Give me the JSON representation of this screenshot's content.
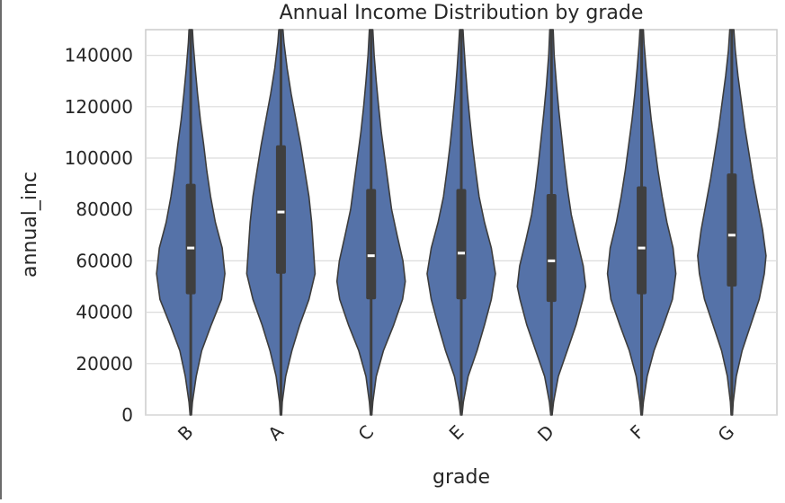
{
  "chart_data": {
    "type": "violin",
    "title": "Annual Income Distribution by grade",
    "xlabel": "grade",
    "ylabel": "annual_inc",
    "categories": [
      "B",
      "A",
      "C",
      "E",
      "D",
      "F",
      "G"
    ],
    "ylim": [
      0,
      150000
    ],
    "yticks": [
      0,
      20000,
      40000,
      60000,
      80000,
      100000,
      120000,
      140000
    ],
    "grid": true,
    "violin_color": "#5572a8",
    "box_color": "#3f3f3f",
    "median_color": "#ffffff",
    "series": [
      {
        "category": "B",
        "median": 65000,
        "q1": 47000,
        "q3": 90000,
        "density": [
          [
            0,
            0.02
          ],
          [
            5000,
            0.05
          ],
          [
            15000,
            0.16
          ],
          [
            25000,
            0.32
          ],
          [
            35000,
            0.6
          ],
          [
            45000,
            0.9
          ],
          [
            55000,
            1.0
          ],
          [
            65000,
            0.92
          ],
          [
            75000,
            0.72
          ],
          [
            85000,
            0.58
          ],
          [
            95000,
            0.47
          ],
          [
            105000,
            0.38
          ],
          [
            115000,
            0.28
          ],
          [
            125000,
            0.2
          ],
          [
            135000,
            0.13
          ],
          [
            145000,
            0.07
          ],
          [
            150000,
            0.05
          ]
        ]
      },
      {
        "category": "A",
        "median": 79000,
        "q1": 55000,
        "q3": 105000,
        "density": [
          [
            0,
            0.02
          ],
          [
            5000,
            0.04
          ],
          [
            15000,
            0.14
          ],
          [
            25000,
            0.32
          ],
          [
            35000,
            0.55
          ],
          [
            45000,
            0.82
          ],
          [
            55000,
            1.0
          ],
          [
            65000,
            0.95
          ],
          [
            75000,
            0.9
          ],
          [
            85000,
            0.82
          ],
          [
            95000,
            0.7
          ],
          [
            105000,
            0.58
          ],
          [
            115000,
            0.44
          ],
          [
            125000,
            0.3
          ],
          [
            135000,
            0.18
          ],
          [
            145000,
            0.09
          ],
          [
            150000,
            0.06
          ]
        ]
      },
      {
        "category": "C",
        "median": 62000,
        "q1": 45000,
        "q3": 88000,
        "density": [
          [
            0,
            0.02
          ],
          [
            5000,
            0.05
          ],
          [
            15000,
            0.15
          ],
          [
            25000,
            0.36
          ],
          [
            35000,
            0.66
          ],
          [
            45000,
            0.92
          ],
          [
            52000,
            1.0
          ],
          [
            60000,
            0.93
          ],
          [
            70000,
            0.76
          ],
          [
            80000,
            0.6
          ],
          [
            90000,
            0.5
          ],
          [
            100000,
            0.4
          ],
          [
            110000,
            0.3
          ],
          [
            120000,
            0.22
          ],
          [
            130000,
            0.15
          ],
          [
            140000,
            0.09
          ],
          [
            150000,
            0.05
          ]
        ]
      },
      {
        "category": "E",
        "median": 63000,
        "q1": 45000,
        "q3": 88000,
        "density": [
          [
            0,
            0.02
          ],
          [
            5000,
            0.06
          ],
          [
            15000,
            0.2
          ],
          [
            25000,
            0.46
          ],
          [
            35000,
            0.68
          ],
          [
            45000,
            0.88
          ],
          [
            55000,
            1.0
          ],
          [
            65000,
            0.88
          ],
          [
            75000,
            0.68
          ],
          [
            85000,
            0.52
          ],
          [
            95000,
            0.42
          ],
          [
            105000,
            0.33
          ],
          [
            115000,
            0.25
          ],
          [
            125000,
            0.18
          ],
          [
            135000,
            0.12
          ],
          [
            145000,
            0.07
          ],
          [
            150000,
            0.05
          ]
        ]
      },
      {
        "category": "D",
        "median": 60000,
        "q1": 44000,
        "q3": 86000,
        "density": [
          [
            0,
            0.02
          ],
          [
            5000,
            0.06
          ],
          [
            15000,
            0.2
          ],
          [
            25000,
            0.46
          ],
          [
            35000,
            0.72
          ],
          [
            45000,
            0.92
          ],
          [
            50000,
            1.0
          ],
          [
            58000,
            0.93
          ],
          [
            68000,
            0.75
          ],
          [
            78000,
            0.58
          ],
          [
            88000,
            0.47
          ],
          [
            98000,
            0.38
          ],
          [
            108000,
            0.3
          ],
          [
            118000,
            0.22
          ],
          [
            128000,
            0.15
          ],
          [
            140000,
            0.08
          ],
          [
            150000,
            0.05
          ]
        ]
      },
      {
        "category": "F",
        "median": 65000,
        "q1": 47000,
        "q3": 89000,
        "density": [
          [
            0,
            0.02
          ],
          [
            5000,
            0.05
          ],
          [
            15000,
            0.16
          ],
          [
            25000,
            0.36
          ],
          [
            35000,
            0.64
          ],
          [
            45000,
            0.9
          ],
          [
            55000,
            1.0
          ],
          [
            65000,
            0.92
          ],
          [
            75000,
            0.74
          ],
          [
            85000,
            0.6
          ],
          [
            95000,
            0.48
          ],
          [
            105000,
            0.38
          ],
          [
            115000,
            0.28
          ],
          [
            125000,
            0.2
          ],
          [
            135000,
            0.13
          ],
          [
            145000,
            0.07
          ],
          [
            150000,
            0.05
          ]
        ]
      },
      {
        "category": "G",
        "median": 70000,
        "q1": 50000,
        "q3": 94000,
        "density": [
          [
            0,
            0.02
          ],
          [
            5000,
            0.04
          ],
          [
            15000,
            0.13
          ],
          [
            25000,
            0.3
          ],
          [
            35000,
            0.55
          ],
          [
            45000,
            0.8
          ],
          [
            55000,
            0.95
          ],
          [
            62000,
            1.0
          ],
          [
            72000,
            0.9
          ],
          [
            82000,
            0.76
          ],
          [
            92000,
            0.62
          ],
          [
            102000,
            0.5
          ],
          [
            112000,
            0.38
          ],
          [
            122000,
            0.28
          ],
          [
            132000,
            0.18
          ],
          [
            142000,
            0.1
          ],
          [
            150000,
            0.06
          ]
        ]
      }
    ]
  }
}
